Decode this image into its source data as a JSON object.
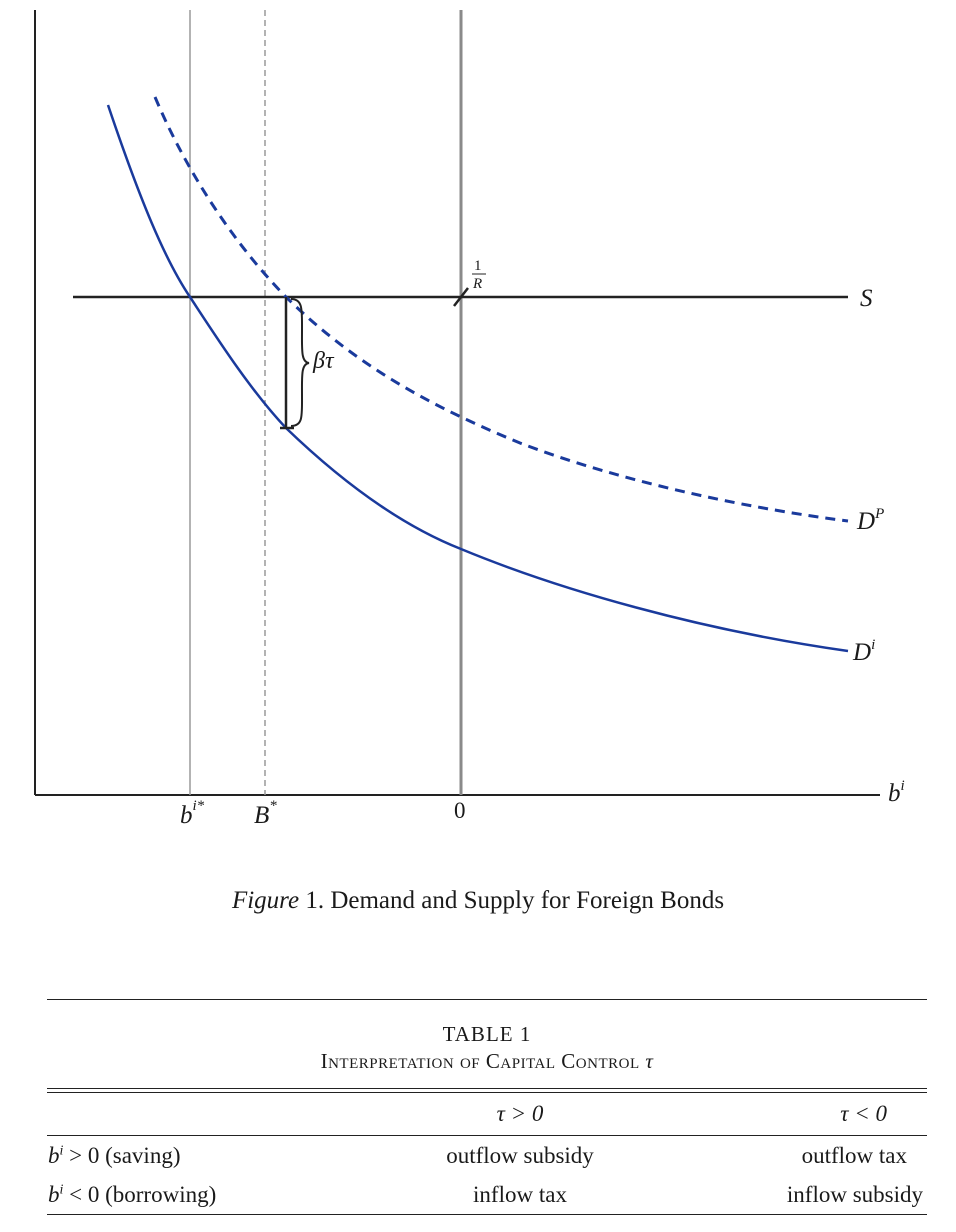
{
  "chart_data": {
    "type": "line",
    "xlabel": "b^i",
    "series": [
      {
        "name": "S"
      },
      {
        "name": "D^P"
      },
      {
        "name": "D^i"
      }
    ],
    "x_tick_labels": [
      "b^{i*}",
      "B^*",
      "0"
    ],
    "annotations": [
      "1/R",
      "βτ"
    ]
  },
  "figure": {
    "xlabel_base": "b",
    "xlabel_sup": "i",
    "tick_bistar_base": "b",
    "tick_bistar_sup": "i*",
    "tick_Bstar_base": "B",
    "tick_Bstar_sup": "*",
    "tick_zero": "0",
    "supply_label": "S",
    "dp_base": "D",
    "dp_sup": "P",
    "di_base": "D",
    "di_sup": "i",
    "wedge_label": "βτ",
    "price_num": "1",
    "price_den": "R",
    "colors": {
      "demand": "#1a3a9c",
      "axis": "#222222",
      "gridline": "#9a9a9a"
    }
  },
  "caption": {
    "prefix": "Figure",
    "text": "1. Demand and Supply for Foreign Bonds"
  },
  "table": {
    "title": "TABLE 1",
    "subtitle_text": "Interpretation of Capital Control",
    "subtitle_symbol": "τ",
    "headers": [
      "",
      "τ > 0",
      "τ < 0"
    ],
    "rows": [
      {
        "var": "b",
        "sup": "i",
        "cond": " > 0 (saving)",
        "pos": "outflow subsidy",
        "neg": "outflow tax"
      },
      {
        "var": "b",
        "sup": "i",
        "cond": " < 0 (borrowing)",
        "pos": "inflow tax",
        "neg": "inflow subsidy"
      }
    ]
  }
}
